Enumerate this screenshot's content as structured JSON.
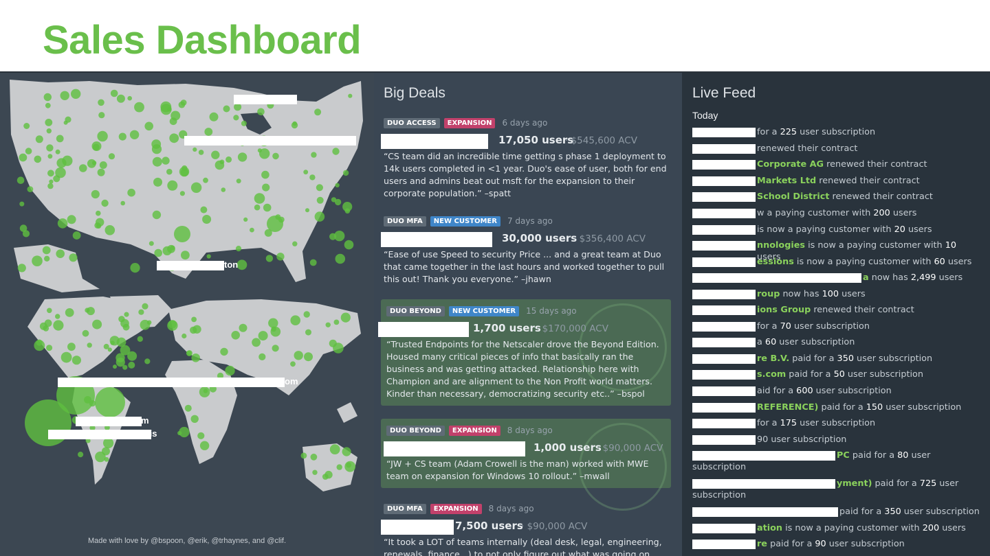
{
  "title": "Sales Dashboard",
  "colors": {
    "accent": "#6abf4b",
    "panel_bg": "#3a4653",
    "feed_bg": "#29333c",
    "tag_red": "#c2416b",
    "tag_blue": "#3f86c9",
    "tag_grey": "#5f6b76"
  },
  "map": {
    "labels": [
      "ton",
      "om",
      "m",
      "lis"
    ],
    "credits": "Made with love by @bspoon, @erik, @trhaynes, and @clif."
  },
  "deals": {
    "heading": "Big Deals",
    "items": [
      {
        "tags": [
          {
            "label": "DUO ACCESS",
            "style": "grey"
          },
          {
            "label": "EXPANSION",
            "style": "red"
          }
        ],
        "ago": "6 days ago",
        "users": "17,050 users",
        "acv": "· $545,600 ACV",
        "quote": "“CS team did an incredible time getting                 s phase 1 deployment to 14k users completed in <1 year. Duo's ease of user, both for end users and admins beat out msft for the expansion to their corporate population.” –spatt"
      },
      {
        "tags": [
          {
            "label": "DUO MFA",
            "style": "grey"
          },
          {
            "label": "NEW CUSTOMER",
            "style": "blue"
          }
        ],
        "ago": "7 days ago",
        "users": "30,000 users",
        "acv": "· $356,400 ACV",
        "quote": "“Ease of use Speed to security Price ... and a great team at Duo that came together in the last hours and worked together to pull this out! Thank you everyone.” –jhawn"
      },
      {
        "tags": [
          {
            "label": "DUO BEYOND",
            "style": "grey"
          },
          {
            "label": "NEW CUSTOMER",
            "style": "blue"
          }
        ],
        "ago": "15 days ago",
        "users": "1,700 users",
        "acv": "· $170,000 ACV",
        "quote": "“Trusted Endpoints for the Netscaler drove the Beyond Edition. Housed many critical pieces of info that basically ran the business and was getting attacked. Relationship here with Champion and are alignment to the Non Profit world matters. Kinder than necessary, democratizing security etc..” –bspol"
      },
      {
        "tags": [
          {
            "label": "DUO BEYOND",
            "style": "grey"
          },
          {
            "label": "EXPANSION",
            "style": "red"
          }
        ],
        "ago": "8 days ago",
        "users": "1,000 users",
        "acv": "· $90,000 ACV",
        "quote": "“JW + CS team (Adam Crowell is the man) worked with MWE team on expansion for Windows 10 rollout.” –mwall"
      },
      {
        "tags": [
          {
            "label": "DUO MFA",
            "style": "grey"
          },
          {
            "label": "EXPANSION",
            "style": "red"
          }
        ],
        "ago": "8 days ago",
        "users": "7,500 users",
        "acv": "· $90,000 ACV",
        "quote": "“It took a LOT of teams internally (deal desk, legal, engineering, renewals, finance...) to not only figure out what was going on with"
      }
    ]
  },
  "feed": {
    "heading": "Live Feed",
    "subheading": "Today",
    "items": [
      {
        "hl": "",
        "pre": "for a ",
        "num": "225",
        "post": " user subscription"
      },
      {
        "hl": "",
        "pre": "renewed their contract",
        "num": "",
        "post": ""
      },
      {
        "hl": "Corporate AG",
        "pre": " renewed their contract",
        "num": "",
        "post": ""
      },
      {
        "hl": " Markets Ltd",
        "pre": " renewed their contract",
        "num": "",
        "post": ""
      },
      {
        "hl": "School District",
        "pre": " renewed their contract",
        "num": "",
        "post": ""
      },
      {
        "hl": "",
        "pre": "w a paying customer with ",
        "num": "200",
        "post": " users"
      },
      {
        "hl": "",
        "pre": " is now a paying customer with ",
        "num": "20",
        "post": " users"
      },
      {
        "hl": "nnologies",
        "pre": " is now a paying customer with ",
        "num": "10",
        "post": " users"
      },
      {
        "hl": "essions",
        "pre": " is now a paying customer with ",
        "num": "60",
        "post": " users"
      },
      {
        "hl": "a",
        "pre": " now has ",
        "num": "2,499",
        "post": " users"
      },
      {
        "hl": "roup",
        "pre": " now has ",
        "num": "100",
        "post": " users"
      },
      {
        "hl": "ions Group",
        "pre": " renewed their contract",
        "num": "",
        "post": ""
      },
      {
        "hl": "",
        "pre": " for a ",
        "num": "70",
        "post": " user subscription"
      },
      {
        "hl": "",
        "pre": "a ",
        "num": "60",
        "post": " user subscription"
      },
      {
        "hl": "re B.V.",
        "pre": " paid for a ",
        "num": "350",
        "post": " user subscription"
      },
      {
        "hl": "s.com",
        "pre": " paid for a ",
        "num": "50",
        "post": " user subscription"
      },
      {
        "hl": "",
        "pre": "aid for a ",
        "num": "600",
        "post": " user subscription"
      },
      {
        "hl": "REFERENCE)",
        "pre": " paid for a ",
        "num": "150",
        "post": " user subscription"
      },
      {
        "hl": "",
        "pre": "for a ",
        "num": "175",
        "post": " user subscription"
      },
      {
        "hl": "",
        "pre": "90 user subscription",
        "num": "",
        "post": ""
      },
      {
        "hl": "PC",
        "pre": " paid for a ",
        "num": "80",
        "post": " user subscription"
      },
      {
        "hl": "yment)",
        "pre": " paid for a ",
        "num": "725",
        "post": " user subscription"
      },
      {
        "hl": "",
        "pre": " paid for a ",
        "num": "350",
        "post": " user subscription"
      },
      {
        "hl": "ation",
        "pre": " is now a paying customer with ",
        "num": "200",
        "post": " users"
      },
      {
        "hl": "re",
        "pre": " paid for a ",
        "num": "90",
        "post": " user subscription"
      }
    ]
  }
}
